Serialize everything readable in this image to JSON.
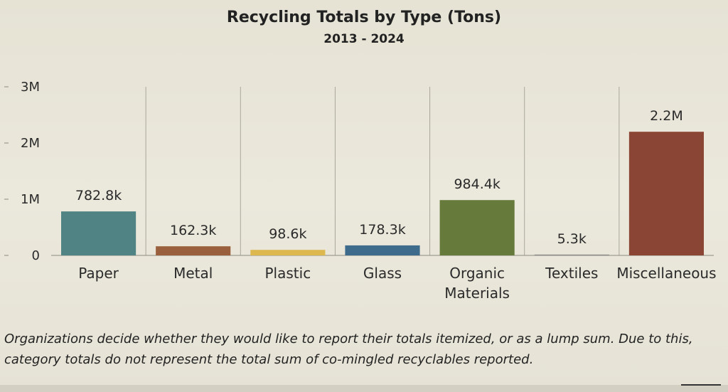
{
  "chart_data": {
    "type": "bar",
    "title": "Recycling Totals by Type (Tons)",
    "subtitle": "2013 - 2024",
    "xlabel": "",
    "ylabel": "",
    "ylim": [
      0,
      3000000
    ],
    "yticks": [
      {
        "value": 0,
        "label": "0"
      },
      {
        "value": 1000000,
        "label": "1M"
      },
      {
        "value": 2000000,
        "label": "2M"
      },
      {
        "value": 3000000,
        "label": "3M"
      }
    ],
    "categories": [
      [
        "Paper"
      ],
      [
        "Metal"
      ],
      [
        "Plastic"
      ],
      [
        "Glass"
      ],
      [
        "Organic",
        "Materials"
      ],
      [
        "Textiles"
      ],
      [
        "Miscellaneous"
      ]
    ],
    "values": [
      782800,
      162300,
      98600,
      178300,
      984400,
      5300,
      2200000
    ],
    "data_labels": [
      "782.8k",
      "162.3k",
      "98.6k",
      "178.3k",
      "984.4k",
      "5.3k",
      "2.2M"
    ],
    "colors": [
      "#4f8384",
      "#9a5f3d",
      "#dcb84e",
      "#3e6a8c",
      "#667a3b",
      "#8a8a88",
      "#8b4535"
    ],
    "grid": {
      "horizontal": false,
      "vertical": true
    },
    "legend": "none"
  },
  "footnote": "Organizations decide whether they would like to report their totals itemized, or as a lump sum. Due to this, category totals do not represent the total sum of co-mingled recyclables reported."
}
